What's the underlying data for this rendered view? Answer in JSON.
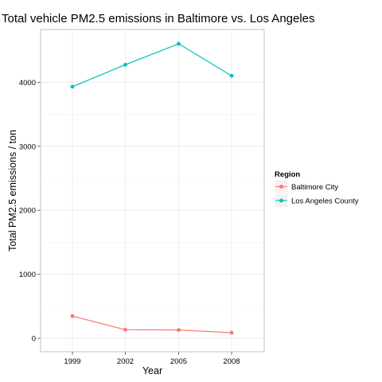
{
  "chart_data": {
    "type": "line",
    "title": "Total vehicle PM2.5 emissions in Baltimore vs. Los Angeles",
    "xlabel": "Year",
    "ylabel": "Total PM2.5 emissions / ton",
    "categories": [
      "1999",
      "2002",
      "2005",
      "2008"
    ],
    "y_ticks": [
      0,
      1000,
      2000,
      3000,
      4000
    ],
    "ylim": [
      -210,
      4825
    ],
    "grid": true,
    "legend": {
      "title": "Region",
      "placement": "right"
    },
    "series": [
      {
        "name": "Baltimore City",
        "color": "#F8766D",
        "values": [
          347,
          134,
          130,
          88
        ]
      },
      {
        "name": "Los Angeles County",
        "color": "#00BFC4",
        "values": [
          3931,
          4274,
          4601,
          4101
        ]
      }
    ]
  }
}
